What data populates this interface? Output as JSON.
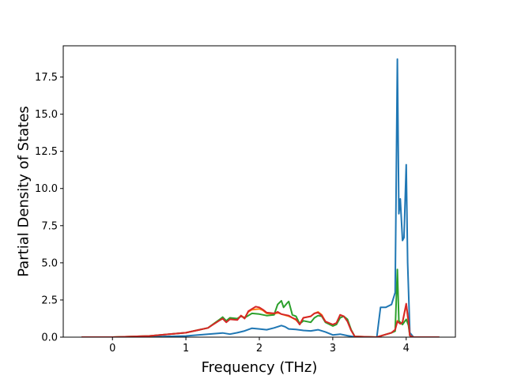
{
  "chart_data": {
    "type": "line",
    "title": "",
    "xlabel": "Frequency (THz)",
    "ylabel": "Partial Density of States",
    "xlim": [
      -0.67,
      4.67
    ],
    "ylim": [
      0,
      19.6
    ],
    "xticks": [
      0,
      1,
      2,
      3,
      4
    ],
    "xtick_labels": [
      "0",
      "1",
      "2",
      "3",
      "4"
    ],
    "yticks": [
      0,
      2.5,
      5,
      7.5,
      10,
      12.5,
      15,
      17.5
    ],
    "ytick_labels": [
      "0.0",
      "2.5",
      "5.0",
      "7.5",
      "10.0",
      "12.5",
      "15.0",
      "17.5"
    ],
    "grid": false,
    "legend": "none",
    "series": [
      {
        "color": "#1f77b4",
        "points": [
          [
            -0.42,
            0
          ],
          [
            0.0,
            0
          ],
          [
            0.5,
            0.02
          ],
          [
            1.0,
            0.08
          ],
          [
            1.3,
            0.2
          ],
          [
            1.5,
            0.28
          ],
          [
            1.6,
            0.2
          ],
          [
            1.7,
            0.3
          ],
          [
            1.8,
            0.42
          ],
          [
            1.9,
            0.6
          ],
          [
            2.0,
            0.55
          ],
          [
            2.1,
            0.5
          ],
          [
            2.2,
            0.62
          ],
          [
            2.3,
            0.78
          ],
          [
            2.35,
            0.7
          ],
          [
            2.4,
            0.55
          ],
          [
            2.5,
            0.52
          ],
          [
            2.6,
            0.45
          ],
          [
            2.7,
            0.42
          ],
          [
            2.8,
            0.5
          ],
          [
            2.9,
            0.35
          ],
          [
            3.0,
            0.15
          ],
          [
            3.1,
            0.2
          ],
          [
            3.2,
            0.1
          ],
          [
            3.3,
            0.02
          ],
          [
            3.5,
            0.0
          ],
          [
            3.6,
            0.0
          ],
          [
            3.65,
            2.0
          ],
          [
            3.72,
            2.0
          ],
          [
            3.8,
            2.2
          ],
          [
            3.85,
            3.0
          ],
          [
            3.88,
            18.7
          ],
          [
            3.9,
            8.3
          ],
          [
            3.92,
            9.3
          ],
          [
            3.95,
            6.5
          ],
          [
            3.97,
            6.7
          ],
          [
            4.0,
            11.6
          ],
          [
            4.02,
            5.0
          ],
          [
            4.05,
            0.3
          ],
          [
            4.1,
            0
          ],
          [
            4.45,
            0
          ]
        ]
      },
      {
        "color": "#ff7f0e",
        "points": [
          [
            -0.42,
            0
          ],
          [
            0.0,
            0
          ],
          [
            0.5,
            0.08
          ],
          [
            1.0,
            0.3
          ],
          [
            1.3,
            0.62
          ],
          [
            1.45,
            1.15
          ],
          [
            1.5,
            1.3
          ],
          [
            1.55,
            1.05
          ],
          [
            1.6,
            1.25
          ],
          [
            1.7,
            1.2
          ],
          [
            1.75,
            1.45
          ],
          [
            1.8,
            1.3
          ],
          [
            1.85,
            1.7
          ],
          [
            1.9,
            1.85
          ],
          [
            2.0,
            1.9
          ],
          [
            2.05,
            1.8
          ],
          [
            2.1,
            1.6
          ],
          [
            2.2,
            1.55
          ],
          [
            2.25,
            1.65
          ],
          [
            2.3,
            1.55
          ],
          [
            2.4,
            1.4
          ],
          [
            2.45,
            1.3
          ],
          [
            2.5,
            1.15
          ],
          [
            2.55,
            0.9
          ],
          [
            2.6,
            1.3
          ],
          [
            2.7,
            1.4
          ],
          [
            2.75,
            1.6
          ],
          [
            2.8,
            1.7
          ],
          [
            2.85,
            1.5
          ],
          [
            2.9,
            1.05
          ],
          [
            3.0,
            0.8
          ],
          [
            3.05,
            0.9
          ],
          [
            3.1,
            1.5
          ],
          [
            3.15,
            1.4
          ],
          [
            3.2,
            1.1
          ],
          [
            3.25,
            0.5
          ],
          [
            3.3,
            0.05
          ],
          [
            3.6,
            0.0
          ],
          [
            3.7,
            0.15
          ],
          [
            3.8,
            0.3
          ],
          [
            3.85,
            0.5
          ],
          [
            3.88,
            1.1
          ],
          [
            3.92,
            0.9
          ],
          [
            3.95,
            1.0
          ],
          [
            4.0,
            2.2
          ],
          [
            4.03,
            1.0
          ],
          [
            4.05,
            0.1
          ],
          [
            4.1,
            0
          ],
          [
            4.45,
            0
          ]
        ]
      },
      {
        "color": "#2ca02c",
        "points": [
          [
            -0.42,
            0
          ],
          [
            0.0,
            0
          ],
          [
            0.5,
            0.08
          ],
          [
            1.0,
            0.3
          ],
          [
            1.3,
            0.62
          ],
          [
            1.45,
            1.15
          ],
          [
            1.5,
            1.35
          ],
          [
            1.55,
            1.1
          ],
          [
            1.6,
            1.3
          ],
          [
            1.7,
            1.25
          ],
          [
            1.75,
            1.4
          ],
          [
            1.8,
            1.3
          ],
          [
            1.85,
            1.45
          ],
          [
            1.9,
            1.6
          ],
          [
            2.0,
            1.55
          ],
          [
            2.1,
            1.45
          ],
          [
            2.2,
            1.5
          ],
          [
            2.25,
            2.2
          ],
          [
            2.3,
            2.45
          ],
          [
            2.33,
            2.0
          ],
          [
            2.38,
            2.3
          ],
          [
            2.4,
            2.4
          ],
          [
            2.45,
            1.5
          ],
          [
            2.5,
            1.4
          ],
          [
            2.55,
            0.9
          ],
          [
            2.6,
            1.1
          ],
          [
            2.7,
            1.0
          ],
          [
            2.75,
            1.3
          ],
          [
            2.8,
            1.45
          ],
          [
            2.85,
            1.4
          ],
          [
            2.9,
            1.0
          ],
          [
            3.0,
            0.75
          ],
          [
            3.05,
            0.85
          ],
          [
            3.1,
            1.3
          ],
          [
            3.15,
            1.4
          ],
          [
            3.2,
            1.2
          ],
          [
            3.25,
            0.5
          ],
          [
            3.3,
            0.05
          ],
          [
            3.6,
            0.0
          ],
          [
            3.7,
            0.15
          ],
          [
            3.8,
            0.3
          ],
          [
            3.85,
            0.4
          ],
          [
            3.88,
            4.55
          ],
          [
            3.9,
            1.1
          ],
          [
            3.95,
            0.85
          ],
          [
            4.0,
            1.2
          ],
          [
            4.03,
            0.8
          ],
          [
            4.05,
            0.1
          ],
          [
            4.1,
            0
          ],
          [
            4.45,
            0
          ]
        ]
      },
      {
        "color": "#d62728",
        "points": [
          [
            -0.42,
            0
          ],
          [
            0.0,
            0
          ],
          [
            0.5,
            0.08
          ],
          [
            1.0,
            0.3
          ],
          [
            1.3,
            0.62
          ],
          [
            1.45,
            1.1
          ],
          [
            1.5,
            1.25
          ],
          [
            1.55,
            1.0
          ],
          [
            1.6,
            1.2
          ],
          [
            1.7,
            1.15
          ],
          [
            1.75,
            1.45
          ],
          [
            1.8,
            1.25
          ],
          [
            1.85,
            1.75
          ],
          [
            1.9,
            1.9
          ],
          [
            1.95,
            2.05
          ],
          [
            2.0,
            2.0
          ],
          [
            2.05,
            1.85
          ],
          [
            2.1,
            1.65
          ],
          [
            2.2,
            1.6
          ],
          [
            2.25,
            1.7
          ],
          [
            2.3,
            1.55
          ],
          [
            2.4,
            1.45
          ],
          [
            2.45,
            1.3
          ],
          [
            2.5,
            1.2
          ],
          [
            2.55,
            0.85
          ],
          [
            2.6,
            1.3
          ],
          [
            2.7,
            1.4
          ],
          [
            2.75,
            1.6
          ],
          [
            2.8,
            1.65
          ],
          [
            2.85,
            1.45
          ],
          [
            2.9,
            1.05
          ],
          [
            3.0,
            0.85
          ],
          [
            3.05,
            0.95
          ],
          [
            3.1,
            1.5
          ],
          [
            3.15,
            1.4
          ],
          [
            3.2,
            1.05
          ],
          [
            3.25,
            0.45
          ],
          [
            3.3,
            0.05
          ],
          [
            3.6,
            0.0
          ],
          [
            3.7,
            0.15
          ],
          [
            3.8,
            0.3
          ],
          [
            3.85,
            0.5
          ],
          [
            3.88,
            1.05
          ],
          [
            3.92,
            0.9
          ],
          [
            3.95,
            1.0
          ],
          [
            4.0,
            2.25
          ],
          [
            4.03,
            1.1
          ],
          [
            4.05,
            0.1
          ],
          [
            4.1,
            0
          ],
          [
            4.45,
            0
          ]
        ]
      }
    ]
  }
}
